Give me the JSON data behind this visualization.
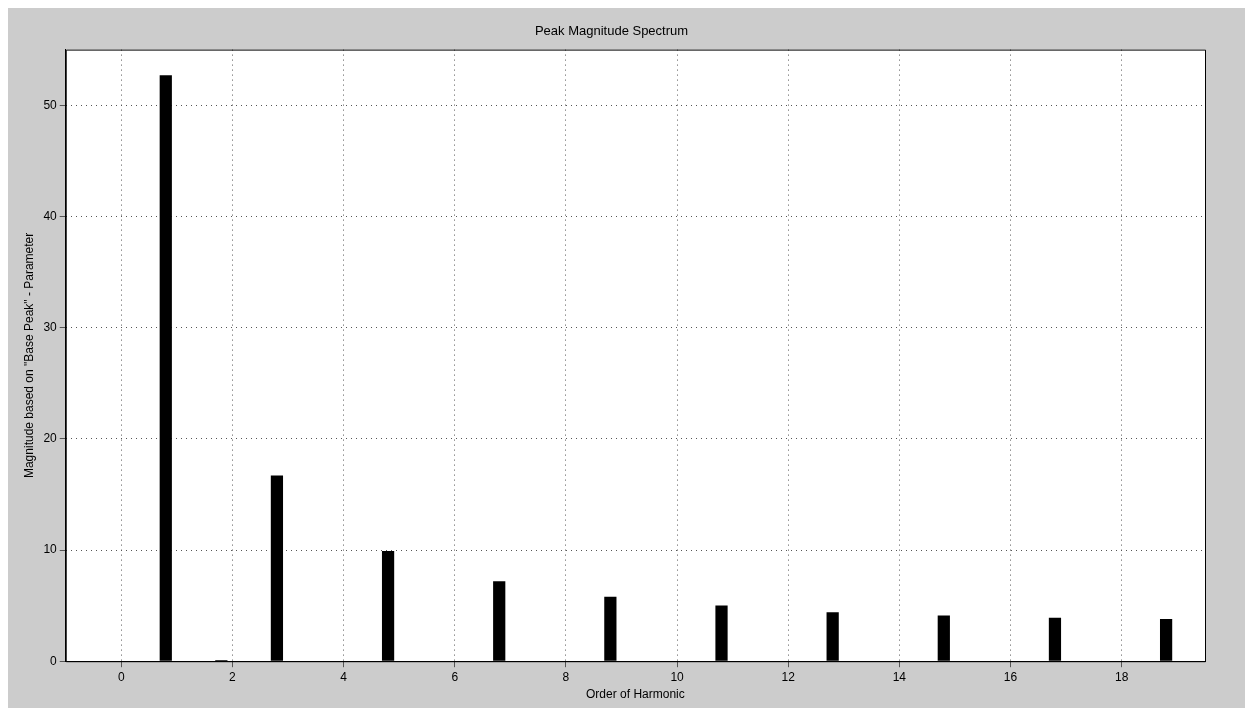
{
  "chart_data": {
    "type": "bar",
    "title": "Peak Magnitude Spectrum",
    "xlabel": "Order of Harmonic",
    "ylabel": "Magnitude based on \"Base Peak\" - Parameter",
    "x": [
      -0.2,
      0.8,
      1.8,
      2.8,
      3.8,
      4.8,
      5.8,
      6.8,
      7.8,
      8.8,
      9.8,
      10.8,
      11.8,
      12.8,
      13.8,
      14.8,
      15.8,
      16.8,
      17.8,
      18.8
    ],
    "values": [
      0,
      52.7,
      0.1,
      16.7,
      0,
      9.9,
      0,
      7.2,
      0,
      5.8,
      0,
      5.0,
      0,
      4.4,
      0,
      4.1,
      0,
      3.9,
      0,
      3.8
    ],
    "color": "#000000",
    "xlim": [
      -1,
      19.5
    ],
    "xticks": [
      0,
      2,
      4,
      6,
      8,
      10,
      12,
      14,
      16,
      18
    ],
    "ylim": [
      0,
      55
    ],
    "yticks": [
      0,
      10,
      20,
      30,
      40,
      50
    ],
    "grid": true
  }
}
